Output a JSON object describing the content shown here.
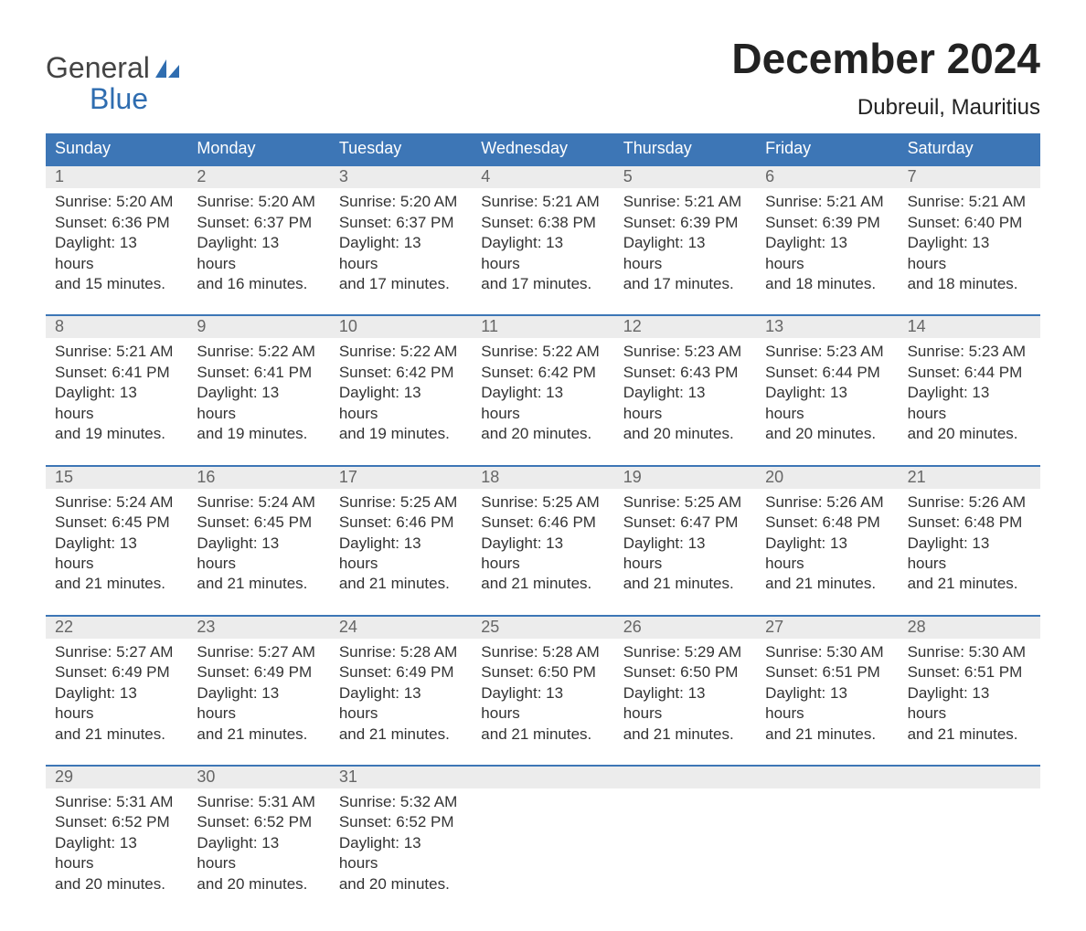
{
  "logo": {
    "word1": "General",
    "word2": "Blue"
  },
  "title": "December 2024",
  "location": "Dubreuil, Mauritius",
  "colors": {
    "header_bg": "#3d76b6",
    "header_text": "#ffffff",
    "number_band_bg": "#ececec",
    "number_text": "#666666",
    "body_text": "#333333",
    "week_border": "#3d76b6",
    "logo_accent": "#2f6db0"
  },
  "day_names": [
    "Sunday",
    "Monday",
    "Tuesday",
    "Wednesday",
    "Thursday",
    "Friday",
    "Saturday"
  ],
  "weeks": [
    [
      {
        "n": "1",
        "sunrise": "Sunrise: 5:20 AM",
        "sunset": "Sunset: 6:36 PM",
        "d1": "Daylight: 13 hours",
        "d2": "and 15 minutes."
      },
      {
        "n": "2",
        "sunrise": "Sunrise: 5:20 AM",
        "sunset": "Sunset: 6:37 PM",
        "d1": "Daylight: 13 hours",
        "d2": "and 16 minutes."
      },
      {
        "n": "3",
        "sunrise": "Sunrise: 5:20 AM",
        "sunset": "Sunset: 6:37 PM",
        "d1": "Daylight: 13 hours",
        "d2": "and 17 minutes."
      },
      {
        "n": "4",
        "sunrise": "Sunrise: 5:21 AM",
        "sunset": "Sunset: 6:38 PM",
        "d1": "Daylight: 13 hours",
        "d2": "and 17 minutes."
      },
      {
        "n": "5",
        "sunrise": "Sunrise: 5:21 AM",
        "sunset": "Sunset: 6:39 PM",
        "d1": "Daylight: 13 hours",
        "d2": "and 17 minutes."
      },
      {
        "n": "6",
        "sunrise": "Sunrise: 5:21 AM",
        "sunset": "Sunset: 6:39 PM",
        "d1": "Daylight: 13 hours",
        "d2": "and 18 minutes."
      },
      {
        "n": "7",
        "sunrise": "Sunrise: 5:21 AM",
        "sunset": "Sunset: 6:40 PM",
        "d1": "Daylight: 13 hours",
        "d2": "and 18 minutes."
      }
    ],
    [
      {
        "n": "8",
        "sunrise": "Sunrise: 5:21 AM",
        "sunset": "Sunset: 6:41 PM",
        "d1": "Daylight: 13 hours",
        "d2": "and 19 minutes."
      },
      {
        "n": "9",
        "sunrise": "Sunrise: 5:22 AM",
        "sunset": "Sunset: 6:41 PM",
        "d1": "Daylight: 13 hours",
        "d2": "and 19 minutes."
      },
      {
        "n": "10",
        "sunrise": "Sunrise: 5:22 AM",
        "sunset": "Sunset: 6:42 PM",
        "d1": "Daylight: 13 hours",
        "d2": "and 19 minutes."
      },
      {
        "n": "11",
        "sunrise": "Sunrise: 5:22 AM",
        "sunset": "Sunset: 6:42 PM",
        "d1": "Daylight: 13 hours",
        "d2": "and 20 minutes."
      },
      {
        "n": "12",
        "sunrise": "Sunrise: 5:23 AM",
        "sunset": "Sunset: 6:43 PM",
        "d1": "Daylight: 13 hours",
        "d2": "and 20 minutes."
      },
      {
        "n": "13",
        "sunrise": "Sunrise: 5:23 AM",
        "sunset": "Sunset: 6:44 PM",
        "d1": "Daylight: 13 hours",
        "d2": "and 20 minutes."
      },
      {
        "n": "14",
        "sunrise": "Sunrise: 5:23 AM",
        "sunset": "Sunset: 6:44 PM",
        "d1": "Daylight: 13 hours",
        "d2": "and 20 minutes."
      }
    ],
    [
      {
        "n": "15",
        "sunrise": "Sunrise: 5:24 AM",
        "sunset": "Sunset: 6:45 PM",
        "d1": "Daylight: 13 hours",
        "d2": "and 21 minutes."
      },
      {
        "n": "16",
        "sunrise": "Sunrise: 5:24 AM",
        "sunset": "Sunset: 6:45 PM",
        "d1": "Daylight: 13 hours",
        "d2": "and 21 minutes."
      },
      {
        "n": "17",
        "sunrise": "Sunrise: 5:25 AM",
        "sunset": "Sunset: 6:46 PM",
        "d1": "Daylight: 13 hours",
        "d2": "and 21 minutes."
      },
      {
        "n": "18",
        "sunrise": "Sunrise: 5:25 AM",
        "sunset": "Sunset: 6:46 PM",
        "d1": "Daylight: 13 hours",
        "d2": "and 21 minutes."
      },
      {
        "n": "19",
        "sunrise": "Sunrise: 5:25 AM",
        "sunset": "Sunset: 6:47 PM",
        "d1": "Daylight: 13 hours",
        "d2": "and 21 minutes."
      },
      {
        "n": "20",
        "sunrise": "Sunrise: 5:26 AM",
        "sunset": "Sunset: 6:48 PM",
        "d1": "Daylight: 13 hours",
        "d2": "and 21 minutes."
      },
      {
        "n": "21",
        "sunrise": "Sunrise: 5:26 AM",
        "sunset": "Sunset: 6:48 PM",
        "d1": "Daylight: 13 hours",
        "d2": "and 21 minutes."
      }
    ],
    [
      {
        "n": "22",
        "sunrise": "Sunrise: 5:27 AM",
        "sunset": "Sunset: 6:49 PM",
        "d1": "Daylight: 13 hours",
        "d2": "and 21 minutes."
      },
      {
        "n": "23",
        "sunrise": "Sunrise: 5:27 AM",
        "sunset": "Sunset: 6:49 PM",
        "d1": "Daylight: 13 hours",
        "d2": "and 21 minutes."
      },
      {
        "n": "24",
        "sunrise": "Sunrise: 5:28 AM",
        "sunset": "Sunset: 6:49 PM",
        "d1": "Daylight: 13 hours",
        "d2": "and 21 minutes."
      },
      {
        "n": "25",
        "sunrise": "Sunrise: 5:28 AM",
        "sunset": "Sunset: 6:50 PM",
        "d1": "Daylight: 13 hours",
        "d2": "and 21 minutes."
      },
      {
        "n": "26",
        "sunrise": "Sunrise: 5:29 AM",
        "sunset": "Sunset: 6:50 PM",
        "d1": "Daylight: 13 hours",
        "d2": "and 21 minutes."
      },
      {
        "n": "27",
        "sunrise": "Sunrise: 5:30 AM",
        "sunset": "Sunset: 6:51 PM",
        "d1": "Daylight: 13 hours",
        "d2": "and 21 minutes."
      },
      {
        "n": "28",
        "sunrise": "Sunrise: 5:30 AM",
        "sunset": "Sunset: 6:51 PM",
        "d1": "Daylight: 13 hours",
        "d2": "and 21 minutes."
      }
    ],
    [
      {
        "n": "29",
        "sunrise": "Sunrise: 5:31 AM",
        "sunset": "Sunset: 6:52 PM",
        "d1": "Daylight: 13 hours",
        "d2": "and 20 minutes."
      },
      {
        "n": "30",
        "sunrise": "Sunrise: 5:31 AM",
        "sunset": "Sunset: 6:52 PM",
        "d1": "Daylight: 13 hours",
        "d2": "and 20 minutes."
      },
      {
        "n": "31",
        "sunrise": "Sunrise: 5:32 AM",
        "sunset": "Sunset: 6:52 PM",
        "d1": "Daylight: 13 hours",
        "d2": "and 20 minutes."
      },
      null,
      null,
      null,
      null
    ]
  ]
}
